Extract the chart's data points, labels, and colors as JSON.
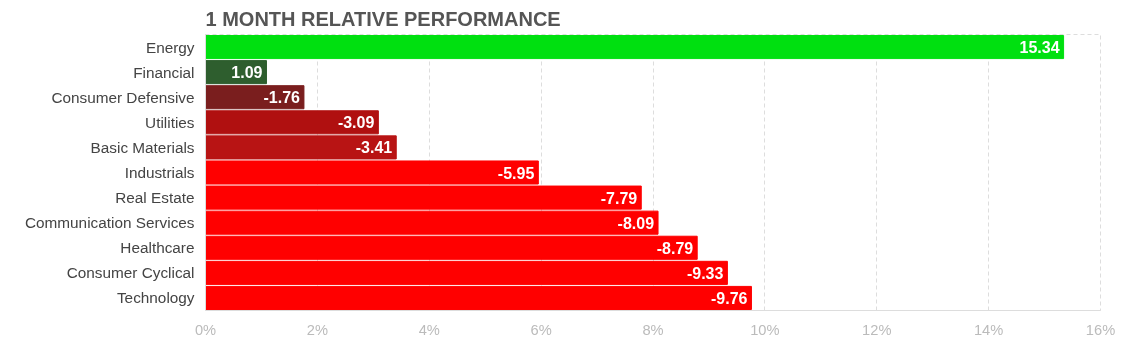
{
  "chart_data": {
    "type": "bar",
    "orientation": "horizontal",
    "title": "1 MONTH RELATIVE PERFORMANCE",
    "categories": [
      "Energy",
      "Financial",
      "Consumer Defensive",
      "Utilities",
      "Basic Materials",
      "Industrials",
      "Real Estate",
      "Communication Services",
      "Healthcare",
      "Consumer Cyclical",
      "Technology"
    ],
    "values": [
      15.34,
      1.09,
      1.76,
      3.09,
      3.41,
      5.95,
      7.79,
      8.09,
      8.79,
      9.33,
      9.76
    ],
    "annotations": [
      {
        "text": "15.34",
        "x": 15.34,
        "y": "Energy"
      },
      {
        "text": "1.09",
        "x": 1.09,
        "y": "Financial"
      },
      {
        "text": "-1.76",
        "x": 1.76,
        "y": "Consumer Defensive"
      },
      {
        "text": "-3.09",
        "x": 3.09,
        "y": "Utilities"
      },
      {
        "text": "-3.41",
        "x": 3.41,
        "y": "Basic Materials"
      },
      {
        "text": "-5.95",
        "x": 5.95,
        "y": "Industrials"
      },
      {
        "text": "-7.79",
        "x": 7.79,
        "y": "Real Estate"
      },
      {
        "text": "-8.09",
        "x": 8.09,
        "y": "Communication Services"
      },
      {
        "text": "-8.79",
        "x": 8.79,
        "y": "Healthcare"
      },
      {
        "text": "-9.33",
        "x": 9.33,
        "y": "Consumer Cyclical"
      },
      {
        "text": "-9.76",
        "x": 9.76,
        "y": "Technology"
      }
    ],
    "colors": [
      "#00e010",
      "#2e5e2e",
      "#7a1e1e",
      "#b01010",
      "#b81414",
      "#ff0000",
      "#ff0000",
      "#ff0000",
      "#ff0000",
      "#ff0000",
      "#ff0000"
    ],
    "xlim": [
      0,
      16
    ],
    "xticks": [
      {
        "value": 0,
        "label": "0%"
      },
      {
        "value": 2,
        "label": "2%"
      },
      {
        "value": 4,
        "label": "4%"
      },
      {
        "value": 6,
        "label": "6%"
      },
      {
        "value": 8,
        "label": "8%"
      },
      {
        "value": 10,
        "label": "10%"
      },
      {
        "value": 12,
        "label": "12%"
      },
      {
        "value": 14,
        "label": "14%"
      },
      {
        "value": 16,
        "label": "16%"
      }
    ],
    "grid": "x"
  }
}
